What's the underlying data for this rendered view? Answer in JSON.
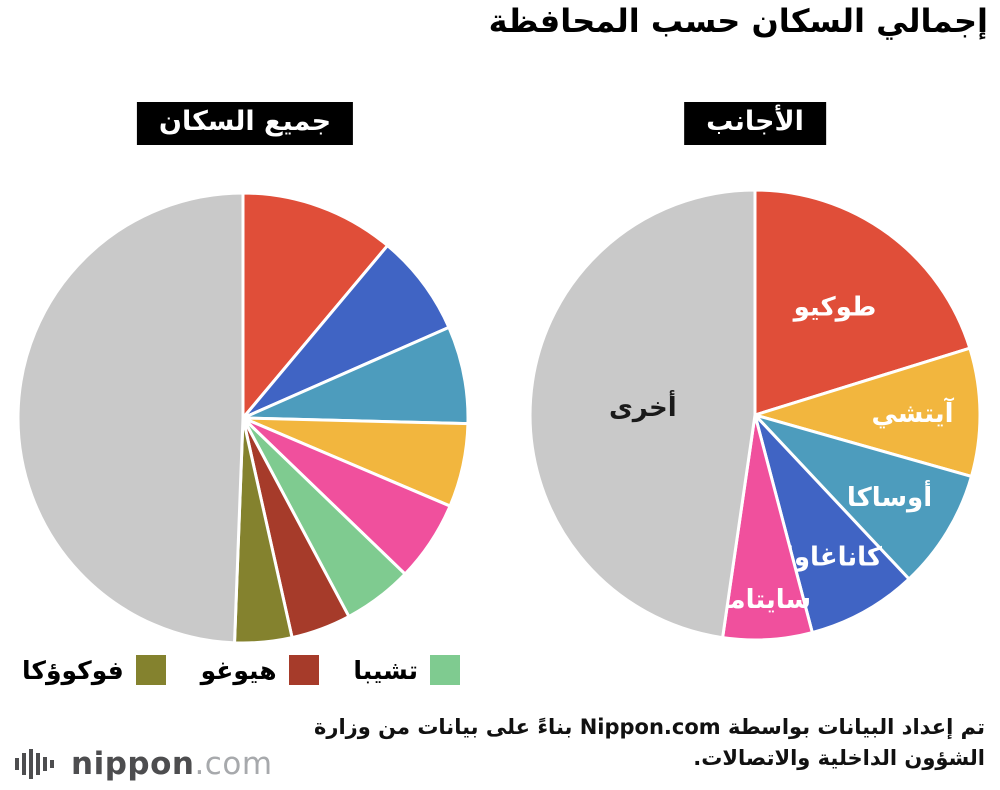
{
  "page": {
    "title": "إجمالي السكان حسب المحافظة",
    "source_note": "تم إعداد البيانات بواسطة Nippon.com بناءً على بيانات من وزارة الشؤون الداخلية والاتصالات.",
    "background": "#ffffff"
  },
  "logo": {
    "brand": "nippon",
    "tld": ".com",
    "icon": "sound-bars-icon",
    "brand_color": "#4d4d4f",
    "tld_color": "#a7a9ac"
  },
  "legend": {
    "items": [
      {
        "name": "chiba",
        "label": "تشيبا",
        "color": "#7fcb90"
      },
      {
        "name": "hyogo",
        "label": "هيوغو",
        "color": "#a63b2a"
      },
      {
        "name": "fukuoka",
        "label": "فوكوؤكا",
        "color": "#84822e"
      }
    ]
  },
  "chart_data": [
    {
      "type": "pie",
      "name": "foreigners",
      "title": "الأجانب",
      "unit": "percent",
      "start_angle_deg": -90,
      "direction": "clockwise",
      "slices": [
        {
          "name": "tokyo",
          "label": "طوكيو",
          "value": 20.2,
          "color": "#e04e39",
          "label_color": "#ffffff",
          "label_r": 0.6
        },
        {
          "name": "aichi",
          "label": "آيتشي",
          "value": 9.2,
          "color": "#f2b63e",
          "label_color": "#ffffff",
          "label_r": 0.7
        },
        {
          "name": "osaka",
          "label": "أوساكا",
          "value": 8.6,
          "color": "#4d9cbd",
          "label_color": "#ffffff",
          "label_r": 0.7
        },
        {
          "name": "kanagawa",
          "label": "كاناغاوا",
          "value": 7.9,
          "color": "#4064c4",
          "label_color": "#ffffff",
          "label_r": 0.72
        },
        {
          "name": "saitama",
          "label": "سايتاما",
          "value": 6.4,
          "color": "#f0509d",
          "label_color": "#ffffff",
          "label_r": 0.82
        },
        {
          "name": "others",
          "label": "أخرى",
          "value": 47.7,
          "color": "#c9c9c9",
          "label_color": "#1a1a1a",
          "label_r": 0.5
        }
      ]
    },
    {
      "type": "pie",
      "name": "all-population",
      "title": "جميع السكان",
      "unit": "percent",
      "start_angle_deg": -90,
      "direction": "clockwise",
      "slices": [
        {
          "name": "tokyo",
          "label": "",
          "value": 11.1,
          "color": "#e04e39"
        },
        {
          "name": "kanagawa",
          "label": "",
          "value": 7.3,
          "color": "#4064c4"
        },
        {
          "name": "osaka",
          "label": "",
          "value": 7.0,
          "color": "#4d9cbd"
        },
        {
          "name": "aichi",
          "label": "",
          "value": 6.0,
          "color": "#f2b63e"
        },
        {
          "name": "saitama",
          "label": "",
          "value": 5.8,
          "color": "#f0509d"
        },
        {
          "name": "chiba",
          "label": "",
          "value": 5.0,
          "color": "#7fcb90"
        },
        {
          "name": "hyogo",
          "label": "",
          "value": 4.3,
          "color": "#a63b2a"
        },
        {
          "name": "fukuoka",
          "label": "",
          "value": 4.1,
          "color": "#84822e"
        },
        {
          "name": "others",
          "label": "",
          "value": 49.4,
          "color": "#c9c9c9"
        }
      ]
    }
  ]
}
